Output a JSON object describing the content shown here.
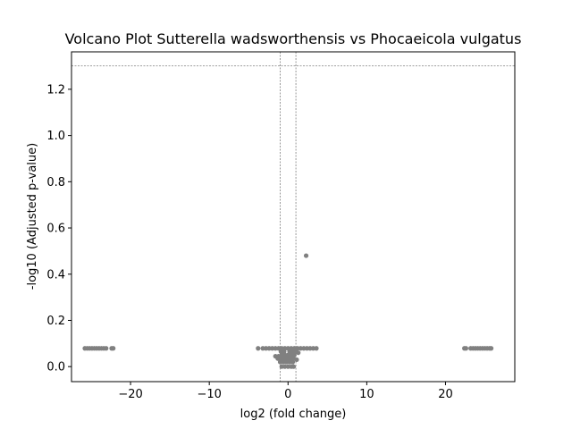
{
  "chart_data": {
    "type": "scatter",
    "title": "Volcano Plot Sutterella wadsworthensis vs Phocaeicola vulgatus",
    "xlabel": "log2 (fold change)",
    "ylabel": "-log10 (Adjusted p-value)",
    "xlim": [
      -27.5,
      28.8
    ],
    "ylim": [
      -0.065,
      1.362
    ],
    "xticks": [
      -20,
      -10,
      0,
      10,
      20
    ],
    "yticks": [
      0.0,
      0.2,
      0.4,
      0.6,
      0.8,
      1.0,
      1.2
    ],
    "xtick_labels": [
      "−20",
      "−10",
      "0",
      "10",
      "20"
    ],
    "ytick_labels": [
      "0.0",
      "0.2",
      "0.4",
      "0.6",
      "0.8",
      "1.0",
      "1.2"
    ],
    "threshold_lines": {
      "horizontal_y": 1.301,
      "vertical_x": [
        -1,
        1
      ]
    },
    "grid": false,
    "point_color": "#808080",
    "threshold_color": "#808080",
    "points": [
      {
        "x": -25.8,
        "y": 0.079
      },
      {
        "x": -25.5,
        "y": 0.079
      },
      {
        "x": -25.2,
        "y": 0.079
      },
      {
        "x": -24.9,
        "y": 0.079
      },
      {
        "x": -24.6,
        "y": 0.079
      },
      {
        "x": -24.3,
        "y": 0.079
      },
      {
        "x": -24.0,
        "y": 0.079
      },
      {
        "x": -23.7,
        "y": 0.079
      },
      {
        "x": -23.4,
        "y": 0.079
      },
      {
        "x": -23.1,
        "y": 0.079
      },
      {
        "x": -22.4,
        "y": 0.079
      },
      {
        "x": -22.2,
        "y": 0.079
      },
      {
        "x": -3.8,
        "y": 0.079
      },
      {
        "x": -3.2,
        "y": 0.079
      },
      {
        "x": -2.8,
        "y": 0.079
      },
      {
        "x": -2.4,
        "y": 0.079
      },
      {
        "x": -2.0,
        "y": 0.079
      },
      {
        "x": -1.6,
        "y": 0.079
      },
      {
        "x": -1.2,
        "y": 0.079
      },
      {
        "x": -0.8,
        "y": 0.079
      },
      {
        "x": -0.4,
        "y": 0.079
      },
      {
        "x": 0.0,
        "y": 0.079
      },
      {
        "x": 0.4,
        "y": 0.079
      },
      {
        "x": 0.8,
        "y": 0.079
      },
      {
        "x": 1.2,
        "y": 0.079
      },
      {
        "x": 1.6,
        "y": 0.079
      },
      {
        "x": 2.0,
        "y": 0.079
      },
      {
        "x": 2.4,
        "y": 0.079
      },
      {
        "x": 2.8,
        "y": 0.079
      },
      {
        "x": 3.2,
        "y": 0.079
      },
      {
        "x": 3.6,
        "y": 0.079
      },
      {
        "x": -0.9,
        "y": 0.065
      },
      {
        "x": -0.5,
        "y": 0.065
      },
      {
        "x": 0.2,
        "y": 0.065
      },
      {
        "x": 0.6,
        "y": 0.065
      },
      {
        "x": 1.0,
        "y": 0.065
      },
      {
        "x": 1.3,
        "y": 0.06
      },
      {
        "x": -1.6,
        "y": 0.045
      },
      {
        "x": -1.2,
        "y": 0.045
      },
      {
        "x": -0.8,
        "y": 0.05
      },
      {
        "x": -0.4,
        "y": 0.05
      },
      {
        "x": 0.0,
        "y": 0.05
      },
      {
        "x": 0.4,
        "y": 0.05
      },
      {
        "x": 0.8,
        "y": 0.05
      },
      {
        "x": -1.3,
        "y": 0.035
      },
      {
        "x": -0.9,
        "y": 0.035
      },
      {
        "x": -0.5,
        "y": 0.035
      },
      {
        "x": -0.1,
        "y": 0.035
      },
      {
        "x": 0.3,
        "y": 0.035
      },
      {
        "x": 0.7,
        "y": 0.035
      },
      {
        "x": 1.1,
        "y": 0.03
      },
      {
        "x": -1.0,
        "y": 0.02
      },
      {
        "x": -0.6,
        "y": 0.02
      },
      {
        "x": -0.2,
        "y": 0.02
      },
      {
        "x": 0.2,
        "y": 0.02
      },
      {
        "x": 0.6,
        "y": 0.02
      },
      {
        "x": -0.8,
        "y": 0.0
      },
      {
        "x": -0.4,
        "y": 0.0
      },
      {
        "x": 0.0,
        "y": 0.0
      },
      {
        "x": 0.4,
        "y": 0.0
      },
      {
        "x": 0.7,
        "y": 0.0
      },
      {
        "x": 2.3,
        "y": 0.48
      },
      {
        "x": 22.4,
        "y": 0.079
      },
      {
        "x": 22.6,
        "y": 0.079
      },
      {
        "x": 23.2,
        "y": 0.079
      },
      {
        "x": 23.5,
        "y": 0.079
      },
      {
        "x": 23.8,
        "y": 0.079
      },
      {
        "x": 24.1,
        "y": 0.079
      },
      {
        "x": 24.4,
        "y": 0.079
      },
      {
        "x": 24.7,
        "y": 0.079
      },
      {
        "x": 25.0,
        "y": 0.079
      },
      {
        "x": 25.3,
        "y": 0.079
      },
      {
        "x": 25.6,
        "y": 0.079
      },
      {
        "x": 25.8,
        "y": 0.079
      }
    ]
  }
}
